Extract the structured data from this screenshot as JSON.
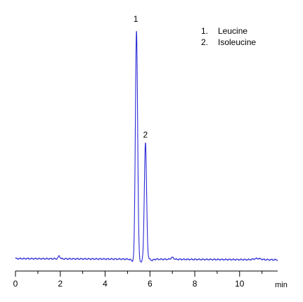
{
  "chart_data": {
    "type": "line",
    "xlabel": "min",
    "ylabel": "",
    "xlim": [
      0,
      11.7
    ],
    "ylim": [
      -0.5,
      10
    ],
    "xticks": [
      0,
      2,
      4,
      6,
      8,
      10
    ],
    "grid": false,
    "line_color": "#2b2bd6",
    "legend_placement": "top-right",
    "legend": [
      {
        "num": "1.",
        "name": "Leucine"
      },
      {
        "num": "2.",
        "name": "Isoleucine"
      }
    ],
    "peaks": [
      {
        "label": "1",
        "compound": "Leucine",
        "time": 5.4,
        "height": 10.0,
        "width": 0.05
      },
      {
        "label": "2",
        "compound": "Isoleucine",
        "time": 5.8,
        "height": 5.0,
        "width": 0.05
      }
    ],
    "minor_features": [
      {
        "time": 1.95,
        "height": 0.12,
        "width": 0.04
      },
      {
        "time": 5.35,
        "height": -0.15,
        "width": 0.12
      },
      {
        "time": 5.62,
        "height": -0.12,
        "width": 0.05
      },
      {
        "time": 7.0,
        "height": 0.08,
        "width": 0.06
      },
      {
        "time": 6.1,
        "height": -0.05,
        "width": 0.05
      },
      {
        "time": 10.8,
        "height": 0.05,
        "width": 0.15
      }
    ],
    "baseline_drift": [
      {
        "time": 0.0,
        "value": 0.05
      },
      {
        "time": 11.7,
        "value": 0.0
      }
    ]
  }
}
